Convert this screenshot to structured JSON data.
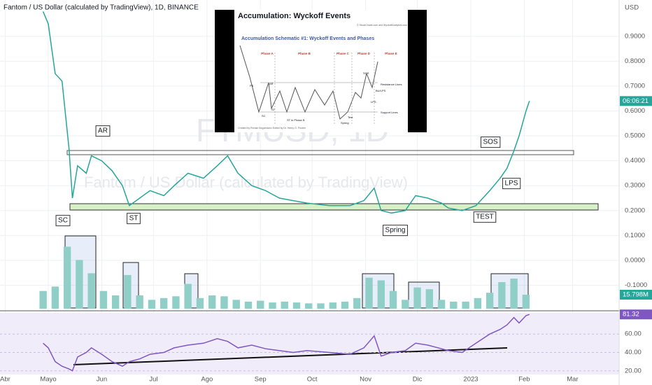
{
  "header": {
    "title": "Fantom / US Dollar (calculated by TradingView), 1D, BINANCE",
    "currency": "USD",
    "countdown": "06:06:21"
  },
  "watermark": {
    "symbol": "FTMUSD, 1D",
    "name": "Fantom / US Dollar (calculated by TradingView)"
  },
  "annotations": [
    "AR",
    "SC",
    "ST",
    "Spring",
    "TEST",
    "SOS",
    "LPS"
  ],
  "inset": {
    "title": "Accumulation: Wyckoff Events",
    "copyright": "© StockCharts.com and WyckoffAnalytics.com",
    "subtitle": "Accumulation Schematic #1: Wyckoff Events and Phases",
    "phases": [
      "Phase A",
      "Phase B",
      "Phase C",
      "Phase D",
      "Phase E"
    ],
    "labels": [
      "PS",
      "SC",
      "AR",
      "ST",
      "ST in Phase B",
      "Spring",
      "Test",
      "SOS",
      "LPS",
      "BU/LPS",
      "Resistance Lines",
      "Support Lines"
    ],
    "credit": "Created by Roman Bogomazov Edited by Dr. Henry O. Pruden"
  },
  "chart_data": [
    {
      "type": "line",
      "color": "#26a69a",
      "x": [
        27,
        30,
        34,
        38,
        42,
        44,
        47,
        52,
        55,
        61,
        67,
        73,
        77,
        83,
        89,
        97,
        103,
        111,
        120,
        128,
        134,
        140,
        148,
        156,
        164,
        172,
        180,
        193,
        205,
        213,
        219,
        223,
        229,
        237,
        243,
        250,
        258,
        262,
        270,
        278,
        286,
        292,
        296,
        300,
        303,
        307,
        309
      ],
      "values": [
        1.0,
        0.95,
        0.75,
        0.72,
        0.45,
        0.25,
        0.38,
        0.35,
        0.42,
        0.4,
        0.36,
        0.3,
        0.22,
        0.25,
        0.28,
        0.26,
        0.3,
        0.35,
        0.33,
        0.38,
        0.42,
        0.35,
        0.3,
        0.28,
        0.25,
        0.24,
        0.23,
        0.22,
        0.22,
        0.24,
        0.29,
        0.2,
        0.19,
        0.2,
        0.26,
        0.25,
        0.23,
        0.21,
        0.2,
        0.22,
        0.28,
        0.33,
        0.37,
        0.44,
        0.5,
        0.6,
        0.64
      ],
      "xlim": [
        2,
        361
      ],
      "ylim": [
        -0.2,
        1.046
      ],
      "yticks": [
        {
          "value": 0.9,
          "label": "0.9000"
        },
        {
          "value": 0.8,
          "label": "0.8000"
        },
        {
          "value": 0.7,
          "label": "0.7000"
        },
        {
          "value": 0.6,
          "label": "0.6000"
        },
        {
          "value": 0.5,
          "label": "0.5000"
        },
        {
          "value": 0.4,
          "label": "0.4000"
        },
        {
          "value": 0.3,
          "label": "0.3000"
        },
        {
          "value": 0.2,
          "label": "0.2000"
        },
        {
          "value": 0.1,
          "label": "0.1000"
        },
        {
          "value": 0,
          "label": "0.0000"
        },
        {
          "value": -0.1,
          "label": "-0.1000"
        }
      ],
      "xticks": [
        {
          "value": 5,
          "label": "Abr"
        },
        {
          "value": 30,
          "label": "Mayo"
        },
        {
          "value": 61,
          "label": "Jun"
        },
        {
          "value": 91,
          "label": "Jul"
        },
        {
          "value": 122,
          "label": "Ago"
        },
        {
          "value": 153,
          "label": "Sep"
        },
        {
          "value": 183,
          "label": "Oct"
        },
        {
          "value": 214,
          "label": "Nov"
        },
        {
          "value": 244,
          "label": "Dic"
        },
        {
          "value": 275,
          "label": "2023"
        },
        {
          "value": 306,
          "label": "Feb"
        },
        {
          "value": 334,
          "label": "Mar"
        }
      ],
      "grid": true
    },
    {
      "type": "bar",
      "color": "#8fcfc8",
      "x": [
        27,
        34,
        41,
        48,
        55,
        62,
        69,
        76,
        83,
        90,
        97,
        104,
        111,
        118,
        125,
        132,
        139,
        146,
        153,
        160,
        167,
        174,
        181,
        188,
        195,
        202,
        209,
        216,
        223,
        230,
        237,
        244,
        251,
        258,
        265,
        272,
        279,
        286,
        293,
        300,
        307
      ],
      "values": [
        20,
        25,
        70,
        55,
        40,
        20,
        15,
        38,
        15,
        10,
        12,
        14,
        28,
        12,
        15,
        14,
        10,
        8,
        9,
        7,
        8,
        7,
        6,
        6,
        7,
        8,
        12,
        35,
        32,
        20,
        10,
        24,
        22,
        10,
        8,
        8,
        12,
        18,
        30,
        34,
        15.798
      ],
      "ylim": [
        0,
        79
      ],
      "last_label": {
        "value": 15.798,
        "label": "15.798M"
      }
    },
    {
      "type": "line",
      "color": "#7e57c2",
      "x": [
        27,
        30,
        34,
        38,
        42,
        44,
        47,
        52,
        55,
        61,
        67,
        73,
        77,
        83,
        89,
        97,
        103,
        111,
        120,
        128,
        134,
        140,
        148,
        156,
        164,
        172,
        180,
        193,
        205,
        213,
        219,
        223,
        229,
        237,
        243,
        250,
        258,
        262,
        270,
        278,
        286,
        292,
        296,
        300,
        303,
        307,
        309
      ],
      "values": [
        50,
        45,
        30,
        25,
        22,
        20,
        35,
        40,
        45,
        38,
        30,
        25,
        30,
        33,
        38,
        40,
        45,
        48,
        50,
        55,
        52,
        45,
        48,
        44,
        42,
        40,
        42,
        40,
        38,
        45,
        58,
        36,
        40,
        42,
        50,
        48,
        44,
        42,
        40,
        50,
        60,
        65,
        70,
        78,
        72,
        80,
        81.32
      ],
      "ylim": [
        16,
        83
      ],
      "yticks": [
        {
          "value": 60,
          "label": "60.00"
        },
        {
          "value": 40,
          "label": "40.00"
        },
        {
          "value": 20,
          "label": "20.00"
        }
      ],
      "last_label": {
        "value": 81.32,
        "label": "81.32"
      }
    }
  ]
}
